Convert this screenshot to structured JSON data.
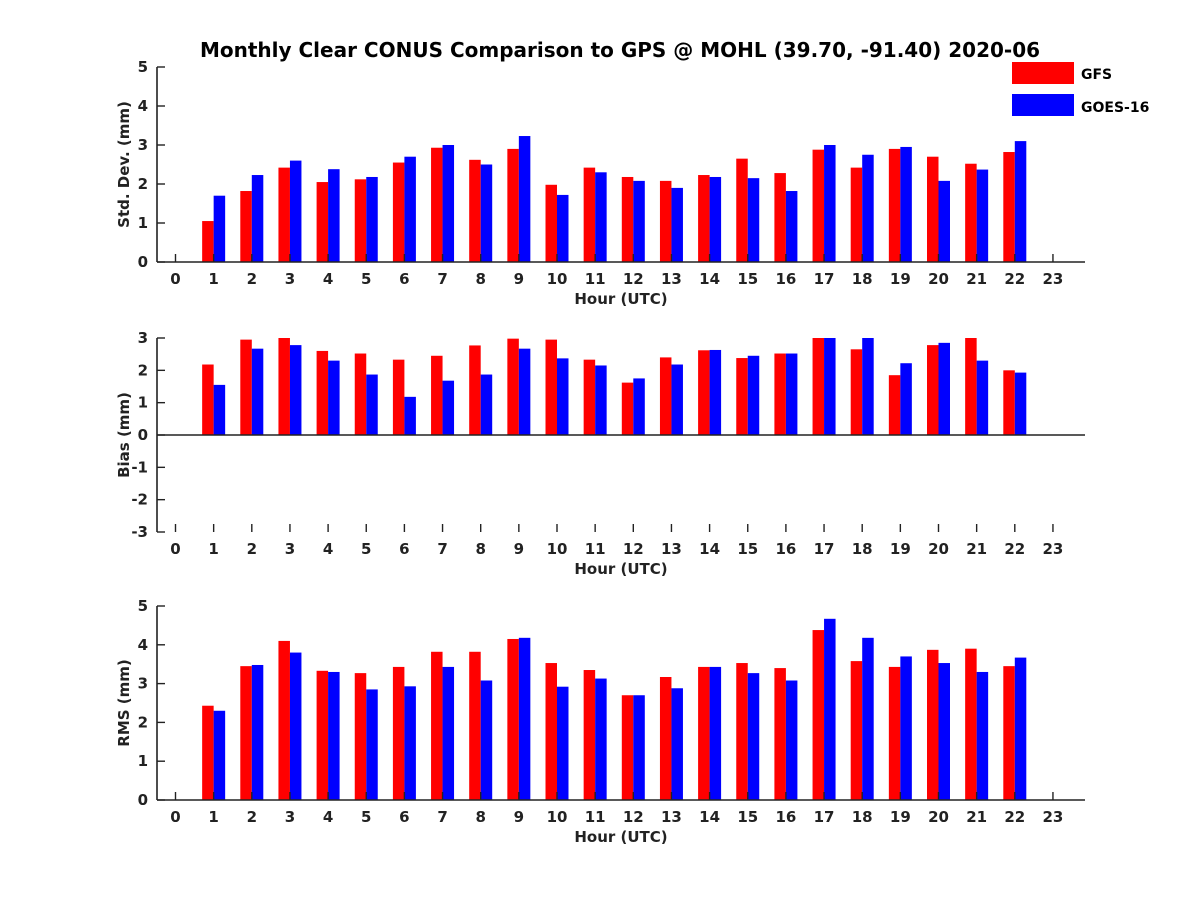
{
  "title": "Monthly Clear CONUS Comparison to GPS @ MOHL (39.70, -91.40) 2020-06",
  "legend": [
    {
      "name": "GFS",
      "color": "#ff0000"
    },
    {
      "name": "GOES-16",
      "color": "#0000ff"
    }
  ],
  "chart_data": [
    {
      "type": "bar",
      "xlabel": "Hour (UTC)",
      "ylabel": "Std. Dev. (mm)",
      "ylim": [
        0,
        5
      ],
      "yticks": [
        0,
        1,
        2,
        3,
        4,
        5
      ],
      "xticks": [
        0,
        1,
        2,
        3,
        4,
        5,
        6,
        7,
        8,
        9,
        10,
        11,
        12,
        13,
        14,
        15,
        16,
        17,
        18,
        19,
        20,
        21,
        22,
        23
      ],
      "categories": [
        1,
        2,
        3,
        4,
        5,
        6,
        7,
        8,
        9,
        10,
        11,
        12,
        13,
        14,
        15,
        16,
        17,
        18,
        19,
        20,
        21,
        22
      ],
      "series": [
        {
          "name": "GFS",
          "values": [
            1.05,
            1.82,
            2.42,
            2.05,
            2.12,
            2.55,
            2.93,
            2.62,
            2.9,
            1.98,
            2.42,
            2.18,
            2.08,
            2.23,
            2.65,
            2.28,
            2.88,
            2.42,
            2.9,
            2.7,
            2.52,
            2.82
          ]
        },
        {
          "name": "GOES-16",
          "values": [
            1.7,
            2.23,
            2.6,
            2.38,
            2.18,
            2.7,
            3.0,
            2.5,
            3.23,
            1.72,
            2.3,
            2.08,
            1.9,
            2.18,
            2.15,
            1.82,
            3.0,
            2.75,
            2.95,
            2.08,
            2.37,
            3.1
          ]
        }
      ]
    },
    {
      "type": "bar",
      "xlabel": "Hour (UTC)",
      "ylabel": "Bias (mm)",
      "ylim": [
        -3,
        3
      ],
      "yticks": [
        -3,
        -2,
        -1,
        0,
        1,
        2,
        3
      ],
      "xticks": [
        0,
        1,
        2,
        3,
        4,
        5,
        6,
        7,
        8,
        9,
        10,
        11,
        12,
        13,
        14,
        15,
        16,
        17,
        18,
        19,
        20,
        21,
        22,
        23
      ],
      "categories": [
        1,
        2,
        3,
        4,
        5,
        6,
        7,
        8,
        9,
        10,
        11,
        12,
        13,
        14,
        15,
        16,
        17,
        18,
        19,
        20,
        21,
        22
      ],
      "series": [
        {
          "name": "GFS",
          "values": [
            2.18,
            2.95,
            3.0,
            2.6,
            2.52,
            2.33,
            2.45,
            2.77,
            2.98,
            2.95,
            2.33,
            1.62,
            2.4,
            2.62,
            2.38,
            2.52,
            3.0,
            2.65,
            1.85,
            2.78,
            3.0,
            2.0
          ]
        },
        {
          "name": "GOES-16",
          "values": [
            1.55,
            2.67,
            2.78,
            2.3,
            1.87,
            1.18,
            1.68,
            1.87,
            2.67,
            2.37,
            2.15,
            1.75,
            2.18,
            2.63,
            2.45,
            2.52,
            3.0,
            3.0,
            2.22,
            2.85,
            2.3,
            1.93
          ]
        }
      ]
    },
    {
      "type": "bar",
      "xlabel": "Hour (UTC)",
      "ylabel": "RMS (mm)",
      "ylim": [
        0,
        5
      ],
      "yticks": [
        0,
        1,
        2,
        3,
        4,
        5
      ],
      "xticks": [
        0,
        1,
        2,
        3,
        4,
        5,
        6,
        7,
        8,
        9,
        10,
        11,
        12,
        13,
        14,
        15,
        16,
        17,
        18,
        19,
        20,
        21,
        22,
        23
      ],
      "categories": [
        1,
        2,
        3,
        4,
        5,
        6,
        7,
        8,
        9,
        10,
        11,
        12,
        13,
        14,
        15,
        16,
        17,
        18,
        19,
        20,
        21,
        22
      ],
      "series": [
        {
          "name": "GFS",
          "values": [
            2.43,
            3.45,
            4.1,
            3.33,
            3.27,
            3.43,
            3.82,
            3.82,
            4.15,
            3.53,
            3.35,
            2.7,
            3.17,
            3.43,
            3.53,
            3.4,
            4.38,
            3.58,
            3.43,
            3.87,
            3.9,
            3.45
          ]
        },
        {
          "name": "GOES-16",
          "values": [
            2.3,
            3.48,
            3.8,
            3.3,
            2.85,
            2.93,
            3.43,
            3.08,
            4.18,
            2.92,
            3.13,
            2.7,
            2.88,
            3.43,
            3.27,
            3.08,
            4.67,
            4.18,
            3.7,
            3.53,
            3.3,
            3.67
          ]
        }
      ]
    }
  ]
}
